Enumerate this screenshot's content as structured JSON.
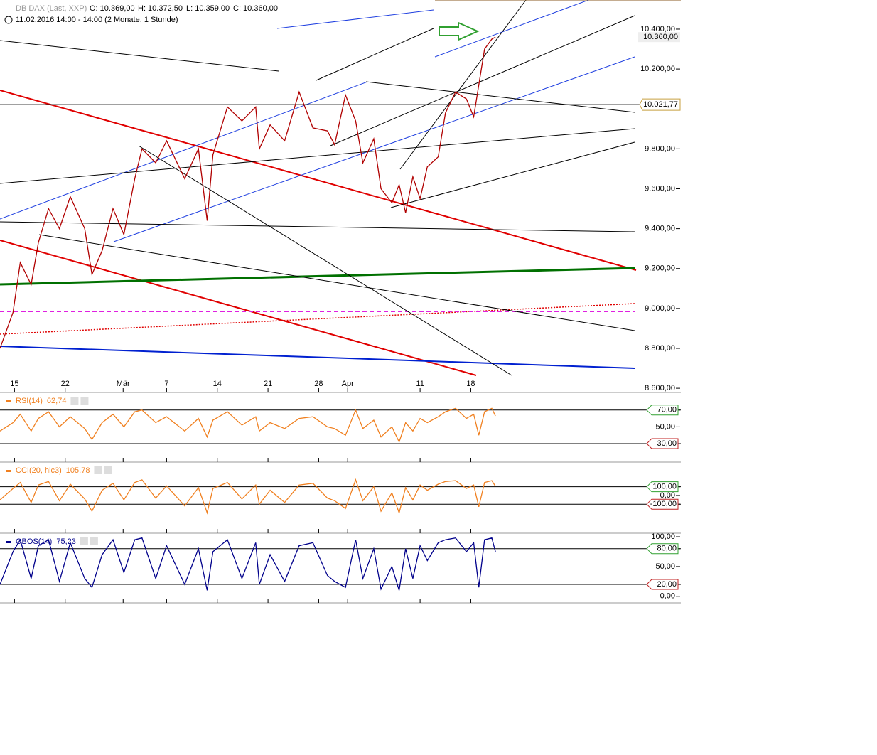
{
  "chart_data": [
    {
      "type": "line",
      "name": "DB DAX (Last, XXP)",
      "open": "O: 10.369,00",
      "high": "H: 10.372,50",
      "low": "L: 10.359,00",
      "close": "C: 10.360,00",
      "subtitle": "11.02.2016 14:00 - 14:00 (2 Monate, 1 Stunde)",
      "color": "#b00000",
      "x": [
        2.0,
        3.8,
        4.8,
        6.3,
        7.3,
        8.7,
        10.2,
        11.7,
        13.7,
        14.7,
        16.1,
        17.6,
        19.1,
        20.6,
        21.6,
        23.5,
        25.0,
        27.5,
        29.4,
        30.6,
        31.4,
        33.4,
        35.4,
        37.3,
        37.8,
        39.3,
        41.3,
        43.3,
        45.2,
        47.2,
        48.2,
        49.7,
        51.1,
        52.1,
        53.6,
        54.6,
        56.1,
        57.1,
        58.0,
        59.0,
        60.0,
        61.0,
        62.5,
        63.5,
        64.9,
        66.4,
        67.4,
        68.1,
        68.9,
        69.9,
        70.4
      ],
      "values": [
        8800,
        8980,
        9230,
        9120,
        9330,
        9500,
        9400,
        9560,
        9400,
        9170,
        9290,
        9500,
        9370,
        9650,
        9800,
        9730,
        9840,
        9650,
        9800,
        9440,
        9770,
        10010,
        9940,
        10010,
        9800,
        9920,
        9840,
        10085,
        9905,
        9890,
        9820,
        10070,
        9940,
        9730,
        9850,
        9600,
        9530,
        9620,
        9480,
        9660,
        9550,
        9710,
        9760,
        9980,
        10085,
        10050,
        9960,
        10120,
        10300,
        10350,
        10360
      ],
      "xlim": [
        2,
        96
      ],
      "xticks": [
        {
          "value": 4,
          "label": "15"
        },
        {
          "value": 11,
          "label": "22"
        },
        {
          "value": 19,
          "label": "Mär"
        },
        {
          "value": 25,
          "label": "7"
        },
        {
          "value": 32,
          "label": "14"
        },
        {
          "value": 39,
          "label": "21"
        },
        {
          "value": 46,
          "label": "28"
        },
        {
          "value": 50,
          "label": "Apr"
        },
        {
          "value": 60,
          "label": "11"
        },
        {
          "value": 67,
          "label": "18"
        }
      ],
      "ylim": [
        8579,
        10546
      ],
      "yticks": [
        {
          "value": 10400,
          "label": "10.400,00"
        },
        {
          "value": 10200,
          "label": "10.200,00"
        },
        {
          "value": 9800,
          "label": "9.800,00"
        },
        {
          "value": 9600,
          "label": "9.600,00"
        },
        {
          "value": 9400,
          "label": "9.400,00"
        },
        {
          "value": 9200,
          "label": "9.200,00"
        },
        {
          "value": 9000,
          "label": "9.000,00"
        },
        {
          "value": 8800,
          "label": "8.800,00"
        },
        {
          "value": 8600,
          "label": "8.600,00"
        }
      ],
      "last": {
        "value": 10360,
        "label": "10.360,00"
      },
      "hline": {
        "value": 10021.77,
        "label": "10.021,77"
      }
    },
    {
      "type": "line",
      "name": "RSI(14)",
      "current": "62,74",
      "color": "#f08020",
      "values": [
        45,
        55,
        65,
        45,
        60,
        68,
        50,
        62,
        48,
        35,
        55,
        65,
        50,
        68,
        70,
        55,
        62,
        45,
        60,
        38,
        58,
        68,
        52,
        62,
        45,
        55,
        48,
        60,
        62,
        50,
        48,
        40,
        70,
        48,
        58,
        38,
        50,
        32,
        55,
        45,
        60,
        55,
        62,
        68,
        72,
        60,
        65,
        40,
        68,
        72,
        63
      ],
      "ylim": [
        8,
        91
      ],
      "yticks": [
        {
          "value": 70,
          "label": "70,00",
          "boxed": "up"
        },
        {
          "value": 50,
          "label": "50,00"
        },
        {
          "value": 30,
          "label": "30,00",
          "boxed": "down"
        }
      ]
    },
    {
      "type": "line",
      "name": "CCI(20, hlc3)",
      "current": "105,78",
      "color": "#f08020",
      "values": [
        -50,
        80,
        150,
        -80,
        120,
        160,
        -60,
        130,
        -40,
        -180,
        60,
        140,
        -50,
        150,
        180,
        -30,
        110,
        -120,
        90,
        -200,
        80,
        150,
        -40,
        120,
        -100,
        60,
        -80,
        120,
        140,
        -30,
        -60,
        -150,
        180,
        -60,
        100,
        -180,
        30,
        -200,
        90,
        -50,
        120,
        60,
        130,
        160,
        170,
        80,
        120,
        -130,
        150,
        170,
        106
      ],
      "ylim": [
        -433,
        383
      ],
      "yticks": [
        {
          "value": 100,
          "label": "100,00",
          "boxed": "up"
        },
        {
          "value": 0,
          "label": "0,00"
        },
        {
          "value": -100,
          "label": "-100,00",
          "boxed": "down"
        }
      ]
    },
    {
      "type": "line",
      "name": "OBOS(14)",
      "current": "75,23",
      "color": "#00008b",
      "values": [
        20,
        75,
        95,
        30,
        85,
        95,
        25,
        90,
        30,
        15,
        70,
        95,
        40,
        95,
        98,
        30,
        85,
        20,
        80,
        10,
        75,
        95,
        30,
        90,
        20,
        70,
        25,
        85,
        90,
        35,
        25,
        15,
        95,
        30,
        80,
        12,
        50,
        10,
        80,
        30,
        85,
        60,
        90,
        95,
        98,
        75,
        90,
        15,
        95,
        98,
        75
      ],
      "ylim": [
        -11,
        106
      ],
      "yticks": [
        {
          "value": 100,
          "label": "100,00"
        },
        {
          "value": 80,
          "label": "80,00",
          "boxed": "up"
        },
        {
          "value": 50,
          "label": "50,00"
        },
        {
          "value": 20,
          "label": "20,00",
          "boxed": "down"
        },
        {
          "value": 0,
          "label": "0,00"
        }
      ]
    }
  ]
}
